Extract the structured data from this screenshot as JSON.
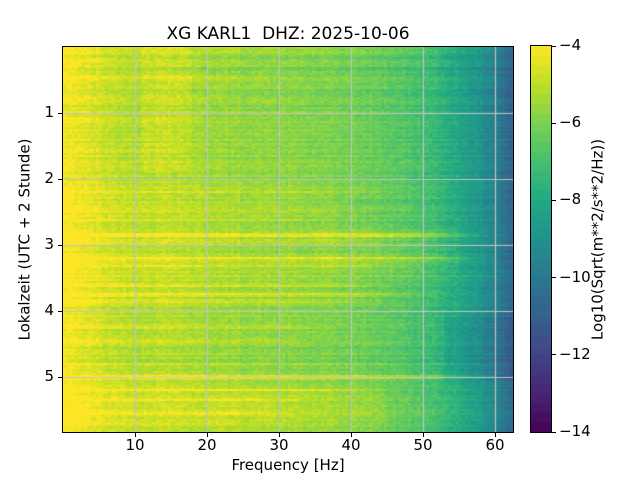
{
  "title": "XG KARL1  DHZ: 2025-10-06",
  "axes": {
    "xlabel": "Frequency [Hz]",
    "ylabel": "Lokalzeit (UTC + 2 Stunde)",
    "xlim": [
      0,
      62.5
    ],
    "ylim": [
      0,
      5.8333
    ],
    "xticks": [
      {
        "v": 10,
        "label": "10"
      },
      {
        "v": 20,
        "label": "20"
      },
      {
        "v": 30,
        "label": "30"
      },
      {
        "v": 40,
        "label": "40"
      },
      {
        "v": 50,
        "label": "50"
      },
      {
        "v": 60,
        "label": "60"
      }
    ],
    "yticks": [
      {
        "v": 1,
        "label": "1"
      },
      {
        "v": 2,
        "label": "2"
      },
      {
        "v": 3,
        "label": "3"
      },
      {
        "v": 4,
        "label": "4"
      },
      {
        "v": 5,
        "label": "5"
      }
    ],
    "grid_color": "#c3c3c3"
  },
  "colorbar": {
    "label": "Log10(Sqrt(m**2/s**2/Hz))",
    "vmin": -14,
    "vmax": -4,
    "n_steps": 40,
    "ticks": [
      {
        "v": -4,
        "label": "−4"
      },
      {
        "v": -6,
        "label": "−6"
      },
      {
        "v": -8,
        "label": "−8"
      },
      {
        "v": -10,
        "label": "−10"
      },
      {
        "v": -12,
        "label": "−12"
      },
      {
        "v": -14,
        "label": "−14"
      }
    ]
  },
  "chart_data": {
    "type": "heatmap",
    "subtype": "spectrogram",
    "title": "XG KARL1  DHZ: 2025-10-06",
    "xlabel": "Frequency [Hz]",
    "ylabel": "Lokalzeit (UTC + 2 Stunde)",
    "x_range_hz": [
      0,
      62.5
    ],
    "y_range_hours": [
      0,
      5.8333
    ],
    "value_scale": "Log10(Sqrt(m**2/s**2/Hz))",
    "value_range": [
      -14,
      -4
    ],
    "colormap": "viridis",
    "colormap_stops": [
      "#440154",
      "#482475",
      "#414487",
      "#35608d",
      "#2a788e",
      "#21918c",
      "#22a884",
      "#44bf70",
      "#7ad151",
      "#bddf26",
      "#fde725"
    ],
    "background_profile": {
      "freq_hz": [
        0,
        2,
        4,
        6,
        9,
        12,
        15,
        18,
        22,
        26,
        30,
        34,
        38,
        42,
        46,
        50,
        53,
        56,
        58,
        60,
        61.5,
        62.5
      ],
      "log10_amp": [
        -4.15,
        -4.3,
        -4.6,
        -4.85,
        -5.1,
        -5.15,
        -5.05,
        -5.3,
        -5.5,
        -5.6,
        -5.7,
        -5.85,
        -6.0,
        -6.2,
        -6.5,
        -7.0,
        -7.6,
        -8.3,
        -8.9,
        -9.6,
        -10.4,
        -10.9
      ]
    },
    "time_offsets": {
      "hours": [
        0,
        0.4,
        0.9,
        1.6,
        2.1,
        2.8,
        3.3,
        3.9,
        4.3,
        4.8,
        5.05,
        5.3,
        5.8333
      ],
      "offset": [
        0.1,
        0.0,
        -0.1,
        -0.05,
        0.05,
        0.15,
        0.1,
        0.0,
        -0.1,
        -0.05,
        0.1,
        0.25,
        0.3
      ]
    },
    "events": [
      {
        "hour": 0.18,
        "boost": -0.45,
        "fmin": 12,
        "fmax": 62.5
      },
      {
        "hour": 0.32,
        "boost": -0.4,
        "fmin": 12,
        "fmax": 62.5
      },
      {
        "hour": 0.45,
        "boost": 0.5,
        "fmin": 0,
        "fmax": 30
      },
      {
        "hour": 0.75,
        "boost": 0.35,
        "fmin": 0,
        "fmax": 25
      },
      {
        "hour": 1.1,
        "boost": 0.4,
        "fmin": 0,
        "fmax": 22
      },
      {
        "hour": 1.55,
        "boost": 0.3,
        "fmin": 0,
        "fmax": 20
      },
      {
        "hour": 2.2,
        "boost": 0.6,
        "fmin": 0,
        "fmax": 45
      },
      {
        "hour": 2.35,
        "boost": 0.55,
        "fmin": 0,
        "fmax": 40
      },
      {
        "hour": 2.5,
        "boost": 0.5,
        "fmin": 0,
        "fmax": 42
      },
      {
        "hour": 2.62,
        "boost": 0.45,
        "fmin": 0,
        "fmax": 38
      },
      {
        "hour": 2.85,
        "boost": 1.5,
        "fmin": 0,
        "fmax": 58
      },
      {
        "hour": 2.95,
        "boost": 0.6,
        "fmin": 0,
        "fmax": 45
      },
      {
        "hour": 3.2,
        "boost": 1.6,
        "fmin": 0,
        "fmax": 60
      },
      {
        "hour": 3.32,
        "boost": 0.8,
        "fmin": 0,
        "fmax": 50
      },
      {
        "hour": 3.62,
        "boost": 0.9,
        "fmin": 0,
        "fmax": 46
      },
      {
        "hour": 3.75,
        "boost": 1.0,
        "fmin": 0,
        "fmax": 50
      },
      {
        "hour": 3.85,
        "boost": 0.8,
        "fmin": 0,
        "fmax": 45
      },
      {
        "hour": 4.25,
        "boost": 0.6,
        "fmin": 0,
        "fmax": 40
      },
      {
        "hour": 4.45,
        "boost": 0.5,
        "fmin": 0,
        "fmax": 35
      },
      {
        "hour": 5.0,
        "boost": 1.8,
        "fmin": 0,
        "fmax": 60
      },
      {
        "hour": 5.2,
        "boost": 1.0,
        "fmin": 0,
        "fmax": 45
      },
      {
        "hour": 5.35,
        "boost": 0.6,
        "fmin": 0,
        "fmax": 35
      },
      {
        "hour": 5.55,
        "boost": 0.6,
        "fmin": 0,
        "fmax": 32
      },
      {
        "hour": 5.7,
        "boost": 0.5,
        "fmin": 0,
        "fmax": 30
      }
    ],
    "event_sigma_hours": 0.02,
    "patches": [
      {
        "f0": 11,
        "f1": 18,
        "t0": 0,
        "t1": 1.9,
        "boost": 0.3
      },
      {
        "f0": 53,
        "f1": 62.5,
        "t0": 4.1,
        "t1": 5.05,
        "boost": -0.35
      },
      {
        "f0": 20,
        "f1": 45,
        "t0": 5.25,
        "t1": 5.8333,
        "boost": 0.25
      },
      {
        "f0": 35,
        "f1": 55,
        "t0": 2.75,
        "t1": 3.4,
        "boost": 0.2
      }
    ],
    "noise": {
      "seed": 42,
      "cell": 0.34,
      "row": 0.28,
      "col": 0.12,
      "bright_row_prob": 0.07,
      "bright_row_extra": 0.3
    }
  }
}
